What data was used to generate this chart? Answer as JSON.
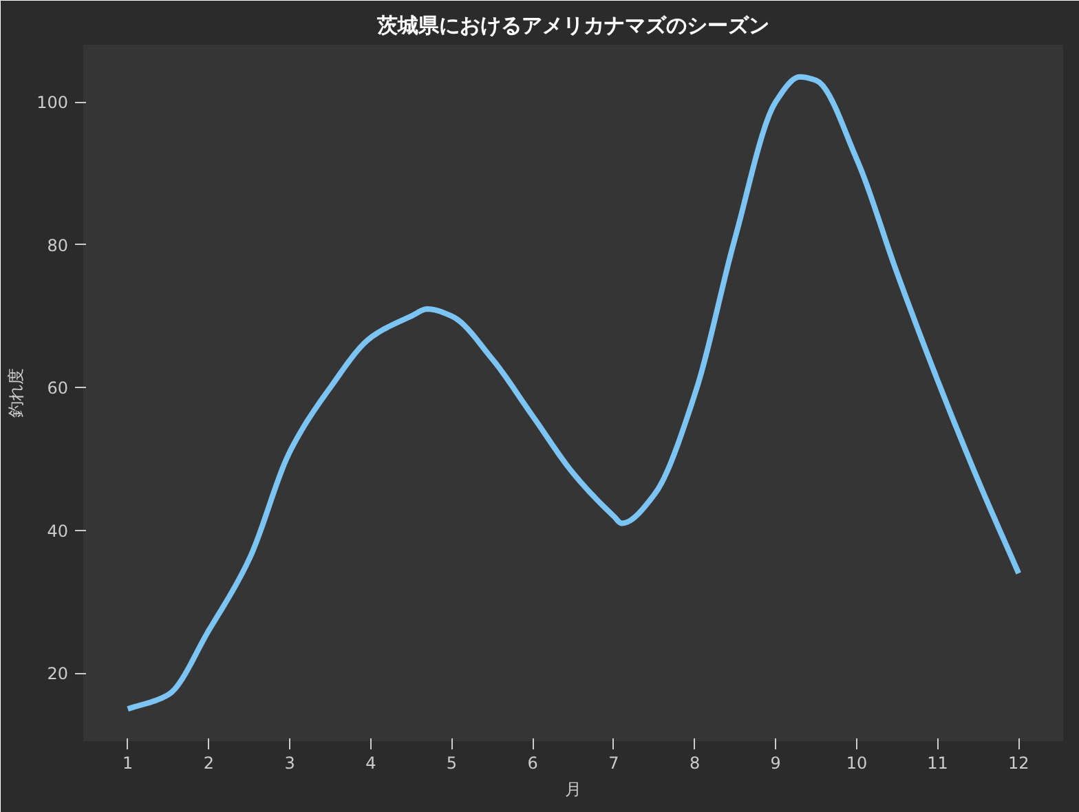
{
  "chart_data": {
    "type": "line",
    "title": "茨城県におけるアメリカナマズのシーズン",
    "xlabel": "月",
    "ylabel": "釣れ度",
    "x": [
      1,
      1.5,
      2,
      2.5,
      3,
      3.5,
      4,
      4.5,
      4.7,
      5,
      5.5,
      6,
      6.5,
      7,
      7.1,
      7.5,
      8,
      8.5,
      9,
      9.3,
      9.5,
      10,
      10.5,
      11,
      11.5,
      12
    ],
    "series": [
      {
        "color": "#7cc4f4",
        "values": [
          15,
          17,
          26,
          36,
          51,
          60,
          67,
          70,
          71,
          70,
          64,
          56,
          48,
          42,
          41,
          45,
          59,
          81,
          100,
          103.5,
          103,
          92,
          76,
          61,
          47,
          34
        ]
      }
    ],
    "xlim": [
      0.45,
      12.55
    ],
    "ylim": [
      10.5,
      108
    ],
    "xticks": [
      1,
      2,
      3,
      4,
      5,
      6,
      7,
      8,
      9,
      10,
      11,
      12
    ],
    "yticks": [
      20,
      40,
      60,
      80,
      100
    ],
    "grid": false,
    "marker": "none",
    "line_style": "solid"
  }
}
